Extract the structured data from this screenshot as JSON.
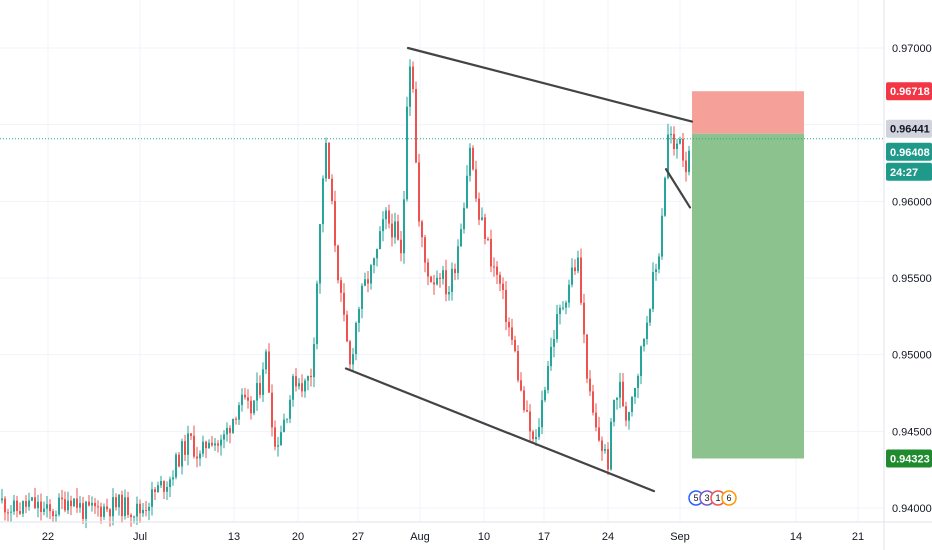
{
  "chart_data": {
    "type": "candlestick",
    "colors": {
      "up": "#26a69a",
      "down": "#ef5350",
      "grid": "#f0f3fa",
      "axis_text": "#131722",
      "trendline": "#444444",
      "stop_zone": "#f6a09a",
      "target_zone": "#8cc28e",
      "current_line": "#26a69a",
      "stop_label": "#f23645",
      "target_label": "#1f8b2e",
      "ask_label": "#d1d4dc",
      "bid_label": "#1f9a8a"
    },
    "y_axis": {
      "range": [
        0.939,
        0.9712
      ],
      "ticks": [
        "0.94000",
        "0.94500",
        "0.95000",
        "0.95500",
        "0.96000",
        "0.96500",
        "0.97000"
      ]
    },
    "x_axis": {
      "ticks": [
        "22",
        "Jul",
        "13",
        "20",
        "27",
        "Aug",
        "10",
        "17",
        "24",
        "Sep",
        "14",
        "21"
      ]
    },
    "price_path": [
      [
        0,
        0.9405
      ],
      [
        15,
        0.9398
      ],
      [
        30,
        0.9403
      ],
      [
        50,
        0.9396
      ],
      [
        70,
        0.9408
      ],
      [
        85,
        0.9397
      ],
      [
        100,
        0.94
      ],
      [
        120,
        0.9402
      ],
      [
        140,
        0.9398
      ],
      [
        155,
        0.941
      ],
      [
        170,
        0.942
      ],
      [
        180,
        0.9435
      ],
      [
        190,
        0.9445
      ],
      [
        200,
        0.9432
      ],
      [
        210,
        0.9448
      ],
      [
        220,
        0.944
      ],
      [
        230,
        0.9455
      ],
      [
        240,
        0.947
      ],
      [
        250,
        0.9462
      ],
      [
        260,
        0.948
      ],
      [
        265,
        0.9505
      ],
      [
        275,
        0.944
      ],
      [
        285,
        0.946
      ],
      [
        295,
        0.9485
      ],
      [
        305,
        0.948
      ],
      [
        312,
        0.949
      ],
      [
        318,
        0.956
      ],
      [
        325,
        0.964
      ],
      [
        332,
        0.9595
      ],
      [
        340,
        0.954
      ],
      [
        345,
        0.9515
      ],
      [
        350,
        0.9492
      ],
      [
        358,
        0.953
      ],
      [
        365,
        0.9545
      ],
      [
        375,
        0.956
      ],
      [
        385,
        0.959
      ],
      [
        395,
        0.958
      ],
      [
        402,
        0.956
      ],
      [
        408,
        0.969
      ],
      [
        412,
        0.9695
      ],
      [
        418,
        0.959
      ],
      [
        425,
        0.956
      ],
      [
        432,
        0.9548
      ],
      [
        440,
        0.9555
      ],
      [
        448,
        0.954
      ],
      [
        455,
        0.956
      ],
      [
        462,
        0.959
      ],
      [
        470,
        0.9637
      ],
      [
        478,
        0.959
      ],
      [
        485,
        0.958
      ],
      [
        492,
        0.956
      ],
      [
        500,
        0.9545
      ],
      [
        508,
        0.952
      ],
      [
        515,
        0.95
      ],
      [
        522,
        0.947
      ],
      [
        530,
        0.945
      ],
      [
        535,
        0.9438
      ],
      [
        540,
        0.946
      ],
      [
        548,
        0.9495
      ],
      [
        556,
        0.952
      ],
      [
        564,
        0.9535
      ],
      [
        572,
        0.9555
      ],
      [
        578,
        0.956
      ],
      [
        584,
        0.951
      ],
      [
        590,
        0.947
      ],
      [
        596,
        0.945
      ],
      [
        602,
        0.944
      ],
      [
        608,
        0.943
      ],
      [
        614,
        0.947
      ],
      [
        620,
        0.9478
      ],
      [
        626,
        0.946
      ],
      [
        632,
        0.9475
      ],
      [
        638,
        0.949
      ],
      [
        646,
        0.952
      ],
      [
        652,
        0.9545
      ],
      [
        658,
        0.956
      ],
      [
        664,
        0.961
      ],
      [
        669,
        0.965
      ],
      [
        674,
        0.963
      ],
      [
        680,
        0.9645
      ],
      [
        685,
        0.962
      ],
      [
        690,
        0.9641
      ]
    ],
    "trendlines": [
      {
        "x1": 408,
        "y1": 0.97,
        "x2": 692,
        "y2": 0.9652
      },
      {
        "x1": 346,
        "y1": 0.9491,
        "x2": 654,
        "y2": 0.9411
      },
      {
        "x1": 666,
        "y1": 0.9621,
        "x2": 690,
        "y2": 0.9596
      }
    ],
    "position": {
      "x_start": 692,
      "x_end": 804,
      "stop": 0.96718,
      "entry": 0.96441,
      "target": 0.94323,
      "current": 0.96408
    },
    "labels": {
      "stop": "0.96718",
      "ask": "0.96441",
      "bid": "0.96408",
      "countdown": "24:27",
      "target": "0.94323"
    },
    "events": [
      "5",
      "3",
      "1",
      "6"
    ]
  }
}
